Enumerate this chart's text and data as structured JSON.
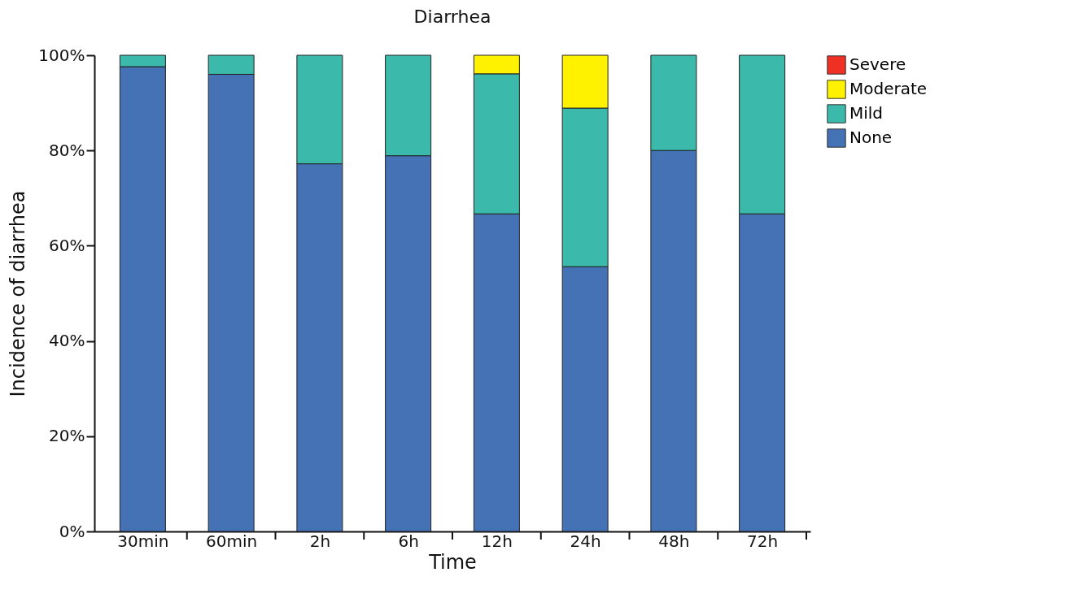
{
  "chart_data": {
    "type": "bar",
    "title": "Diarrhea",
    "xlabel": "Time",
    "ylabel": "Incidence of diarrhea",
    "categories": [
      "30min",
      "60min",
      "2h",
      "6h",
      "12h",
      "24h",
      "48h",
      "72h"
    ],
    "stacked": true,
    "legend": "right",
    "grid": false,
    "ylim": [
      0,
      100
    ],
    "yticks": [
      {
        "value": 0,
        "label": "0%"
      },
      {
        "value": 20,
        "label": "20%"
      },
      {
        "value": 40,
        "label": "40%"
      },
      {
        "value": 60,
        "label": "60%"
      },
      {
        "value": 80,
        "label": "80%"
      },
      {
        "value": 100,
        "label": "100%"
      }
    ],
    "series": [
      {
        "name": "None",
        "color": "#4472b4",
        "values": [
          97.6,
          96.0,
          77.2,
          78.9,
          66.7,
          55.6,
          80.0,
          66.7
        ]
      },
      {
        "name": "Mild",
        "color": "#3bb9aa",
        "values": [
          2.4,
          4.0,
          22.8,
          21.1,
          29.4,
          33.3,
          20.0,
          33.3
        ]
      },
      {
        "name": "Moderate",
        "color": "#fff200",
        "values": [
          0,
          0,
          0,
          0,
          3.9,
          11.1,
          0,
          0
        ]
      },
      {
        "name": "Severe",
        "color": "#ee3124",
        "values": [
          0,
          0,
          0,
          0,
          0,
          0,
          0,
          0
        ]
      }
    ]
  }
}
